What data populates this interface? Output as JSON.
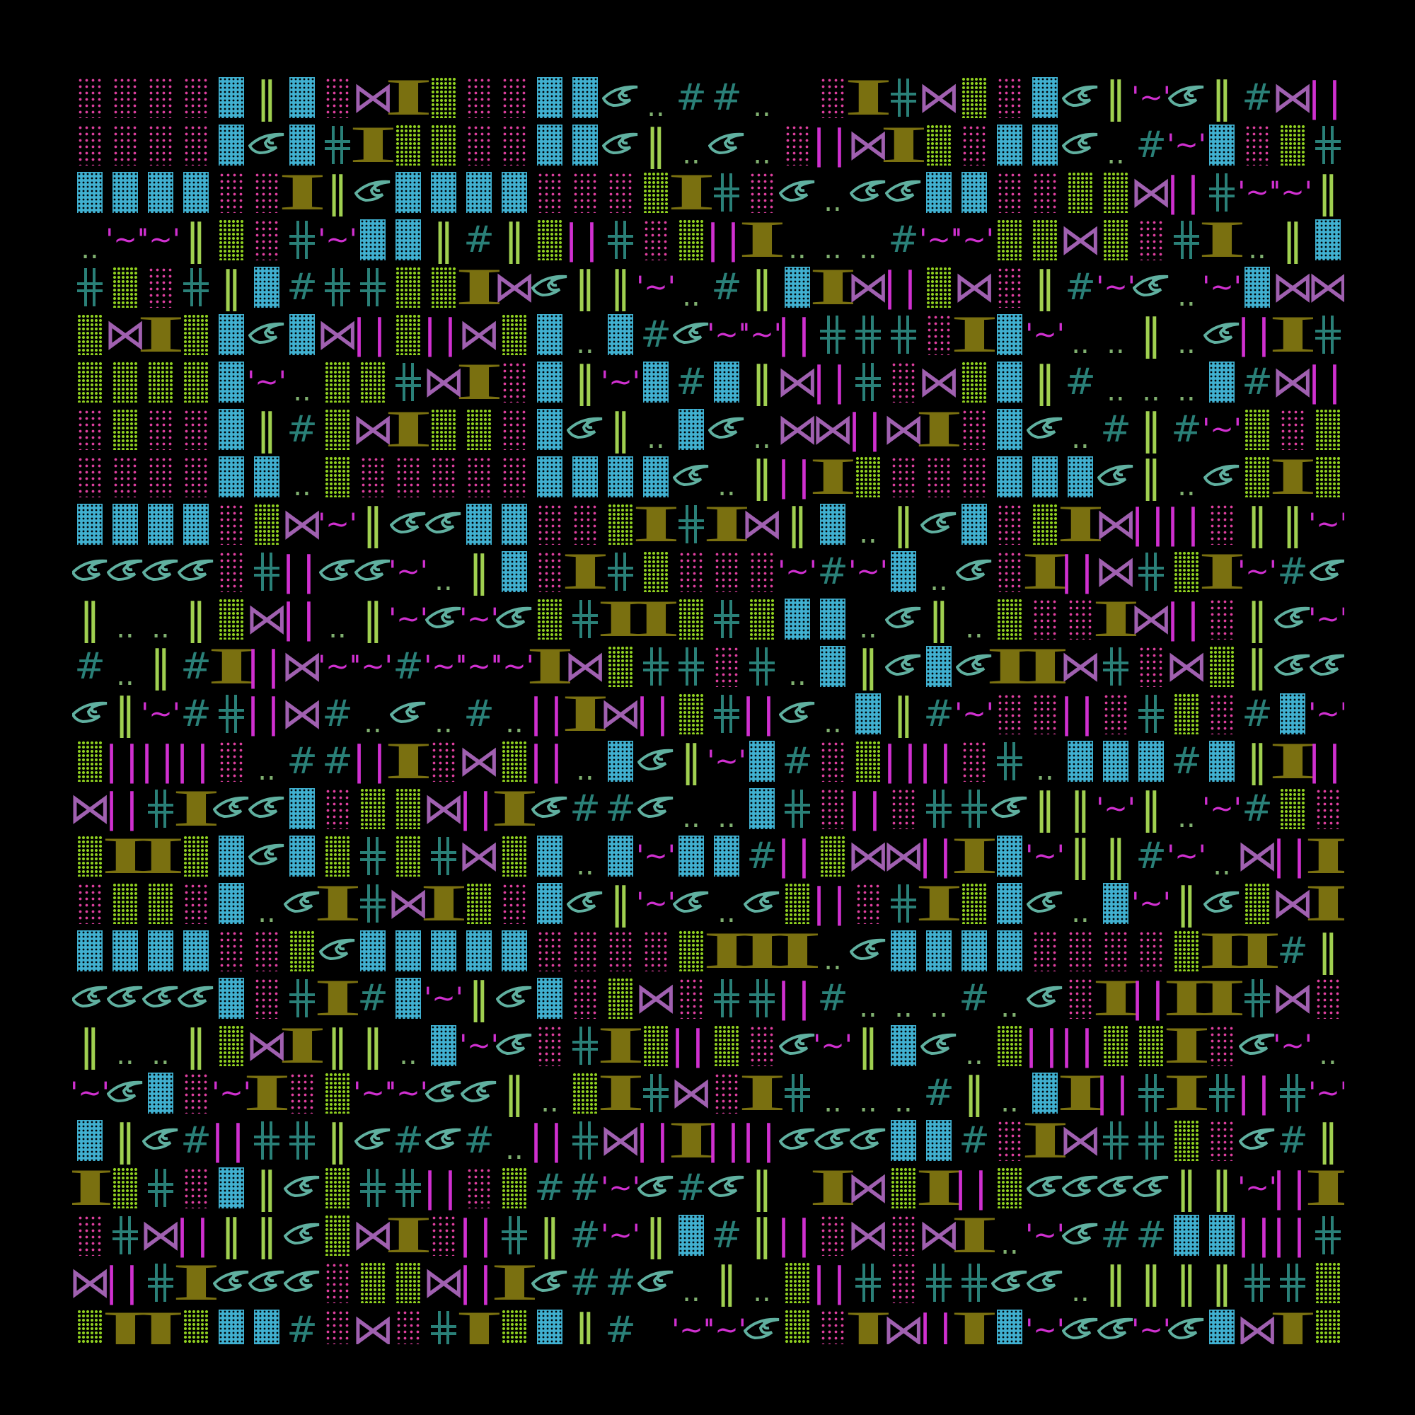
{
  "colors": {
    "background": "#000000",
    "pink_dots": "#e040a0",
    "green_dots": "#8fd020",
    "blue_block": "#40b0d0",
    "olive_beam": "#7a7010",
    "bowtie": "#a060b0",
    "eye": "#60b0a0",
    "cross_and_hash": "#2a8078",
    "double_dot": "#80b070",
    "double_bar": "#a0d050",
    "magenta": "#d030d0"
  },
  "glyph_legend": {
    "P": "pink-dot-block",
    "G": "green-dot-block",
    "B": "blue-grid-block",
    "I": "olive-i-beam",
    "X": "bowtie",
    "E": "eye",
    "H": "double-cross",
    "#": "hash",
    ".": "double-dot",
    "L": "double-bar",
    "M": "magenta-bars",
    "~": "tilde-quote",
    " ": "empty"
  },
  "glyph_text": {
    "I": "I",
    "X": "⋈",
    "#": "#",
    ".": "..",
    "L": "‖",
    "M": "||",
    "~": "'~'"
  },
  "grid": [
    "PPPPBLBPXIGPPBBE.##. PIHXGPBEL~EL#XMP",
    "PPPPBEBHIGGPPBBEL.E.PMXIGPBBE.#~BPGH",
    "BBBBPPILEBBBBPPPGIHPE.EEBBPPGGXMH~~L",
    ".~~LGPH~BBL#LGMHPGMI...#~~GGXGPHI.LB",
    "HGPHLB#HHGGIXELL~.#LBIXMGXPL#~E.~BXX",
    "GXIGBEBXMGMXGB.B#E~~MHHHPIB~..L.EMIH",
    "GGGGB~.GGHXIPBL~B#BLXMHPXGBL#...B#XM",
    "PGPPBL#GXIGGPBEL.BE.XXMXIPBE.#L#~GPG",
    "PPPPBB.GPPPPPBBBBE.LMIGPPPBBBEL.EGIG",
    "BBBBPGX~LEEBBPPGIHIXLB.LEBPGIXMMPLL~",
    "EEEEPHMEE~.LBPIHGPPP~#~B.EPIMXHGI~#E",
    "L..LGXM.L~E~EGHIIGHGBB.EL.GPPIXMPLE~",
    "#.L#IMX~~#~~~IXGHHPH.BLEBEIIXHPXGLEE",
    "EL~#HMX#.E.#.MIXMGHME.BL#~PPMPHGP#B~",
    "GMMMP.##MIPXGM.BEL~B#PGMMPH.BBB#BLIM",
    "XMHIEEBPGGXMIE##E..BHPMPHHELL~L.~#GP",
    "GIIGBEBGHGHXGB.B~BB#MGXXMIB~LL#~.XMI",
    "PGGPB.EIHXIGPBEL~E.EGMPHIGBE.B~LEGXI",
    "BBBBPPGEBBBBBPPPPGIII.EBBBBPPPPGII#L",
    "EEEEBPHI#B~LEBPGXPHHM#...#.EPIMIIHXP",
    "L..LGXILL.B~EPHIGMGPE~LBE.GMMGGIPE~.",
    "~EBP~IPG~~EEL.GIHXPIH...#L.BIMHIHMH~",
    "BLE#MHHLE#E#.MHXMIMMEEEBB#PIXHHGPE#L",
    "IGHPBLEGHHMPG##~E#EL IXGIMGEEEELL~MI",
    "PHXMLLEGXIPMHL#~LB#LMPXPXI.~E##BBMMH",
    "XMHIEEEPGGXMIE##E.L.GMHPHHEE.LLLLHHG",
    "GIIGBB#PXPHIGBL#.~~EGPIXMIB~EE~EBXIG"
  ]
}
